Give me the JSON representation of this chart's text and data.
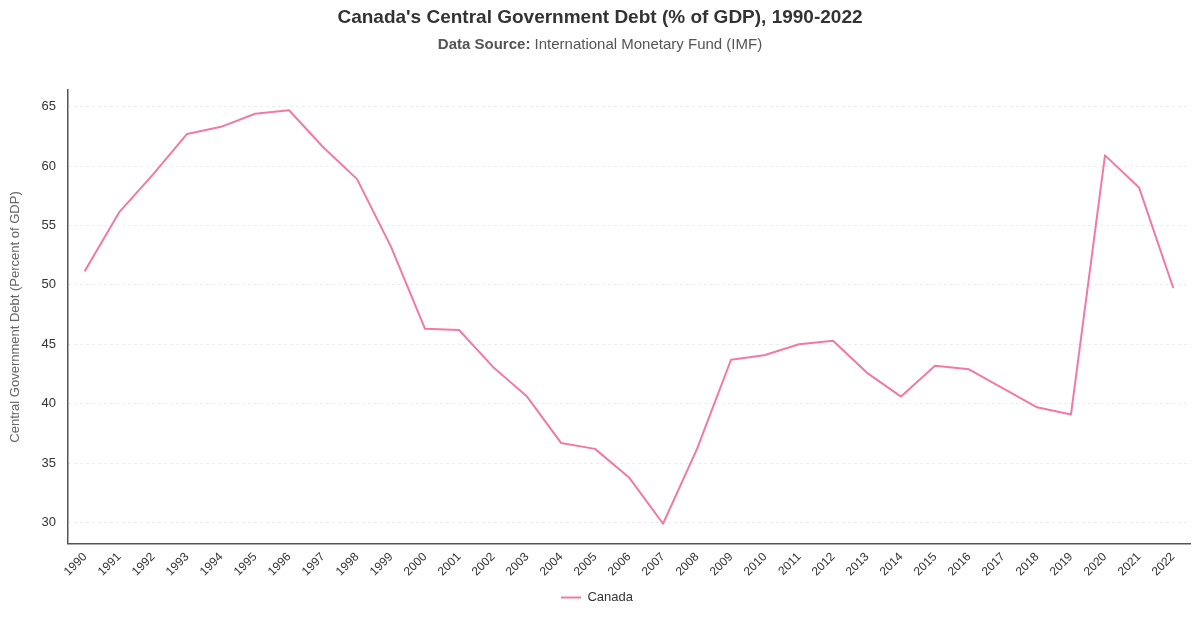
{
  "chart_data": {
    "type": "line",
    "title": "Canada's Central Government Debt (% of GDP), 1990-2022",
    "subtitle": "Data Source: International Monetary Fund (IMF)",
    "ylabel": "Central Government Debt (Percent of GDP)",
    "categories": [
      "1990",
      "1991",
      "1992",
      "1993",
      "1994",
      "1995",
      "1996",
      "1997",
      "1998",
      "1999",
      "2000",
      "2001",
      "2002",
      "2003",
      "2004",
      "2005",
      "2006",
      "2007",
      "2008",
      "2009",
      "2010",
      "2011",
      "2012",
      "2013",
      "2014",
      "2015",
      "2016",
      "2017",
      "2018",
      "2019",
      "2020",
      "2021",
      "2022"
    ],
    "series": [
      {
        "name": "Canada",
        "color": "#f07aa5",
        "values": [
          51.2,
          56.1,
          59.3,
          62.7,
          63.3,
          64.4,
          64.7,
          61.6,
          58.9,
          53.2,
          46.3,
          46.2,
          43.1,
          40.6,
          36.7,
          36.2,
          33.8,
          29.9,
          36.2,
          43.7,
          44.1,
          45.0,
          45.3,
          42.6,
          40.6,
          43.2,
          42.9,
          41.3,
          39.7,
          39.1,
          60.9,
          58.2,
          49.8
        ]
      }
    ],
    "ylim": [
      28.2,
      66.4
    ],
    "yticks": [
      30,
      35,
      40,
      45,
      50,
      55,
      60,
      65
    ],
    "grid": "y",
    "legend": "bottom",
    "marker": "none",
    "line_style": "solid"
  }
}
